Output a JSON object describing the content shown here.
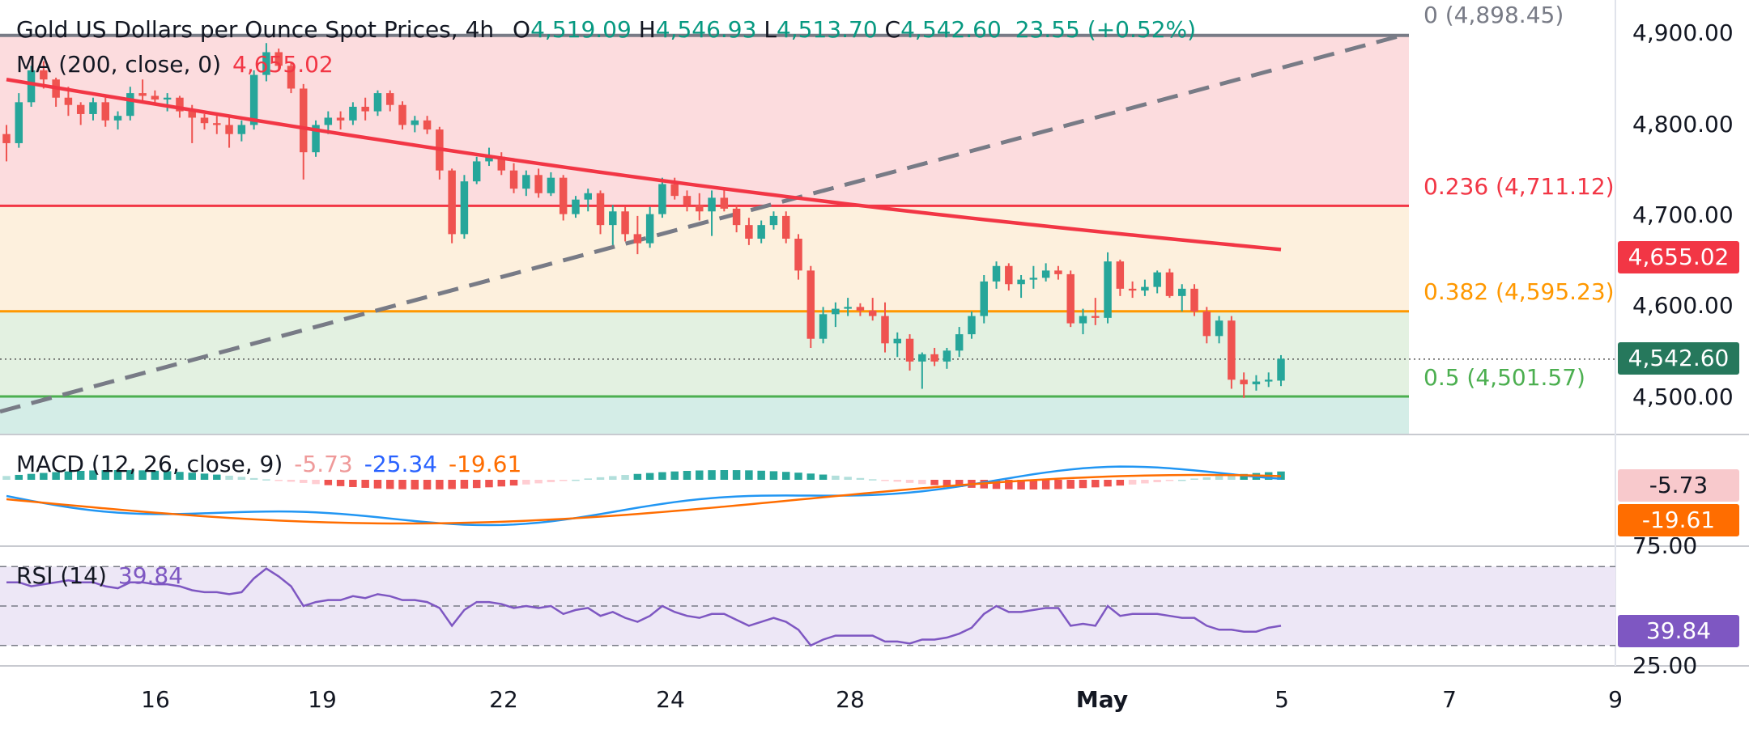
{
  "header": {
    "title": "Gold US Dollars per Ounce Spot Prices, 4h",
    "open_label": "O",
    "open": "4,519.09",
    "high_label": "H",
    "high": "4,546.93",
    "low_label": "L",
    "low": "4,513.70",
    "close_label": "C",
    "close": "4,542.60",
    "change": "23.55",
    "change_pct": "(+0.52%)"
  },
  "ma_legend": {
    "label": "MA (200, close, 0)",
    "value": "4,655.02"
  },
  "macd_legend": {
    "label": "MACD (12, 26, close, 9)",
    "hist": "-5.73",
    "macd": "-25.34",
    "signal": "-19.61"
  },
  "rsi_legend": {
    "label": "RSI (14)",
    "value": "39.84"
  },
  "fib_labels": {
    "f0": "0 (4,898.45)",
    "f236": "0.236 (4,711.12)",
    "f382": "0.382 (4,595.23)",
    "f5": "0.5 (4,501.57)"
  },
  "price_axis": {
    "ticks": [
      "4,900.00",
      "4,800.00",
      "4,700.00",
      "4,600.00",
      "4,500.00"
    ]
  },
  "badges": {
    "ma": "4,655.02",
    "last": "4,542.60",
    "macd_hist": "-5.73",
    "macd_signal": "-19.61",
    "rsi": "39.84"
  },
  "rsi_axis": {
    "top": "75.00",
    "bottom": "25.00"
  },
  "date_axis": [
    "16",
    "19",
    "22",
    "24",
    "28",
    "May",
    "5",
    "7",
    "9"
  ],
  "colors": {
    "up": "#26a69a",
    "down": "#ef5350",
    "ma": "#f23645",
    "fib0": "#787b86",
    "fib236": "#f23645",
    "fib382": "#ff9800",
    "fib5": "#4caf50",
    "zone_red": "#fcdcde",
    "zone_orange": "#fdf0dd",
    "zone_green": "#e3f1e1",
    "zone_teal": "#d4ede7",
    "macd_line": "#2196f3",
    "signal_line": "#ff6d00",
    "rsi_line": "#7e57c2",
    "rsi_band": "#ede7f6"
  },
  "chart_data": [
    {
      "type": "candlestick",
      "title": "Gold US Dollars per Ounce Spot Prices, 4h",
      "ylim": [
        4450,
        4930
      ],
      "y_ticks": [
        4900,
        4800,
        4700,
        4600,
        4500
      ],
      "x_ticks": [
        "16",
        "19",
        "22",
        "24",
        "28",
        "May",
        "5",
        "7",
        "9"
      ],
      "last_price": 4542.6,
      "fibonacci": [
        {
          "level": 0,
          "price": 4898.45
        },
        {
          "level": 0.236,
          "price": 4711.12
        },
        {
          "level": 0.382,
          "price": 4595.23
        },
        {
          "level": 0.5,
          "price": 4501.57
        }
      ],
      "moving_average": {
        "name": "MA (200, close, 0)",
        "start": 4850,
        "end": 4655.02
      },
      "trendline": {
        "style": "dashed",
        "start": 4485,
        "end": 4900
      },
      "series": [
        {
          "name": "OHLC",
          "values": [
            [
              4790,
              4800,
              4760,
              4780
            ],
            [
              4780,
              4835,
              4775,
              4825
            ],
            [
              4825,
              4865,
              4820,
              4860
            ],
            [
              4860,
              4870,
              4840,
              4850
            ],
            [
              4850,
              4852,
              4820,
              4830
            ],
            [
              4830,
              4842,
              4810,
              4822
            ],
            [
              4822,
              4825,
              4800,
              4812
            ],
            [
              4812,
              4830,
              4805,
              4825
            ],
            [
              4825,
              4830,
              4798,
              4805
            ],
            [
              4805,
              4815,
              4795,
              4810
            ],
            [
              4810,
              4842,
              4805,
              4835
            ],
            [
              4835,
              4850,
              4825,
              4832
            ],
            [
              4832,
              4838,
              4822,
              4828
            ],
            [
              4828,
              4835,
              4815,
              4830
            ],
            [
              4830,
              4832,
              4808,
              4815
            ],
            [
              4815,
              4822,
              4780,
              4808
            ],
            [
              4808,
              4812,
              4795,
              4802
            ],
            [
              4802,
              4810,
              4790,
              4800
            ],
            [
              4800,
              4808,
              4775,
              4790
            ],
            [
              4790,
              4805,
              4782,
              4800
            ],
            [
              4800,
              4860,
              4795,
              4855
            ],
            [
              4855,
              4890,
              4848,
              4880
            ],
            [
              4880,
              4884,
              4860,
              4865
            ],
            [
              4865,
              4868,
              4835,
              4840
            ],
            [
              4840,
              4845,
              4740,
              4770
            ],
            [
              4770,
              4805,
              4765,
              4800
            ],
            [
              4800,
              4815,
              4790,
              4808
            ],
            [
              4808,
              4815,
              4795,
              4805
            ],
            [
              4805,
              4825,
              4800,
              4820
            ],
            [
              4820,
              4830,
              4805,
              4815
            ],
            [
              4815,
              4838,
              4810,
              4835
            ],
            [
              4835,
              4838,
              4815,
              4822
            ],
            [
              4822,
              4826,
              4795,
              4800
            ],
            [
              4800,
              4810,
              4792,
              4805
            ],
            [
              4805,
              4810,
              4790,
              4795
            ],
            [
              4795,
              4798,
              4740,
              4750
            ],
            [
              4750,
              4752,
              4670,
              4680
            ],
            [
              4680,
              4745,
              4675,
              4738
            ],
            [
              4738,
              4765,
              4735,
              4760
            ],
            [
              4760,
              4775,
              4755,
              4765
            ],
            [
              4765,
              4770,
              4745,
              4750
            ],
            [
              4750,
              4758,
              4725,
              4730
            ],
            [
              4730,
              4750,
              4722,
              4745
            ],
            [
              4745,
              4752,
              4720,
              4725
            ],
            [
              4725,
              4748,
              4722,
              4742
            ],
            [
              4742,
              4745,
              4695,
              4702
            ],
            [
              4702,
              4722,
              4698,
              4718
            ],
            [
              4718,
              4730,
              4705,
              4725
            ],
            [
              4725,
              4728,
              4680,
              4690
            ],
            [
              4690,
              4712,
              4668,
              4705
            ],
            [
              4705,
              4710,
              4672,
              4680
            ],
            [
              4680,
              4700,
              4658,
              4670
            ],
            [
              4670,
              4710,
              4665,
              4702
            ],
            [
              4702,
              4742,
              4698,
              4735
            ],
            [
              4735,
              4742,
              4718,
              4722
            ],
            [
              4722,
              4728,
              4705,
              4712
            ],
            [
              4712,
              4725,
              4695,
              4705
            ],
            [
              4705,
              4728,
              4678,
              4720
            ],
            [
              4720,
              4730,
              4705,
              4708
            ],
            [
              4708,
              4712,
              4682,
              4690
            ],
            [
              4690,
              4698,
              4668,
              4675
            ],
            [
              4675,
              4695,
              4670,
              4690
            ],
            [
              4690,
              4705,
              4685,
              4700
            ],
            [
              4700,
              4705,
              4670,
              4675
            ],
            [
              4675,
              4680,
              4630,
              4640
            ],
            [
              4640,
              4645,
              4555,
              4565
            ],
            [
              4565,
              4600,
              4560,
              4592
            ],
            [
              4592,
              4605,
              4578,
              4598
            ],
            [
              4598,
              4610,
              4590,
              4600
            ],
            [
              4600,
              4604,
              4590,
              4596
            ],
            [
              4596,
              4610,
              4585,
              4590
            ],
            [
              4590,
              4605,
              4550,
              4560
            ],
            [
              4560,
              4572,
              4545,
              4565
            ],
            [
              4565,
              4570,
              4530,
              4540
            ],
            [
              4540,
              4550,
              4510,
              4548
            ],
            [
              4548,
              4555,
              4535,
              4540
            ],
            [
              4540,
              4555,
              4532,
              4552
            ],
            [
              4552,
              4578,
              4545,
              4570
            ],
            [
              4570,
              4595,
              4565,
              4590
            ],
            [
              4590,
              4635,
              4582,
              4628
            ],
            [
              4628,
              4650,
              4620,
              4645
            ],
            [
              4645,
              4648,
              4618,
              4625
            ],
            [
              4625,
              4635,
              4610,
              4630
            ],
            [
              4630,
              4645,
              4620,
              4632
            ],
            [
              4632,
              4648,
              4628,
              4640
            ],
            [
              4640,
              4645,
              4630,
              4636
            ],
            [
              4636,
              4640,
              4578,
              4582
            ],
            [
              4582,
              4598,
              4570,
              4590
            ],
            [
              4590,
              4610,
              4580,
              4588
            ],
            [
              4588,
              4660,
              4582,
              4650
            ],
            [
              4650,
              4652,
              4612,
              4620
            ],
            [
              4620,
              4628,
              4610,
              4618
            ],
            [
              4618,
              4630,
              4612,
              4622
            ],
            [
              4622,
              4640,
              4615,
              4638
            ],
            [
              4638,
              4642,
              4610,
              4612
            ],
            [
              4612,
              4625,
              4595,
              4620
            ],
            [
              4620,
              4625,
              4590,
              4595
            ],
            [
              4595,
              4600,
              4560,
              4568
            ],
            [
              4568,
              4590,
              4560,
              4585
            ],
            [
              4585,
              4590,
              4510,
              4520
            ],
            [
              4520,
              4528,
              4500,
              4515
            ],
            [
              4515,
              4525,
              4508,
              4518
            ],
            [
              4518,
              4528,
              4512,
              4520
            ],
            [
              4519,
              4547,
              4513,
              4543
            ]
          ]
        }
      ]
    },
    {
      "type": "bar",
      "title": "MACD (12, 26, close, 9)",
      "series": [
        {
          "name": "Histogram",
          "values": [
            -5.73
          ]
        },
        {
          "name": "MACD",
          "values": [
            -25.34
          ]
        },
        {
          "name": "Signal",
          "values": [
            -19.61
          ]
        }
      ]
    },
    {
      "type": "line",
      "title": "RSI (14)",
      "ylim": [
        25,
        75
      ],
      "series": [
        {
          "name": "RSI",
          "values": [
            62,
            62,
            60,
            61,
            62,
            63,
            62,
            62,
            60,
            59,
            62,
            62,
            61,
            61,
            60,
            58,
            57,
            57,
            56,
            57,
            64,
            69,
            65,
            60,
            50,
            52,
            53,
            53,
            55,
            54,
            56,
            55,
            53,
            53,
            52,
            49,
            40,
            48,
            52,
            52,
            51,
            49,
            50,
            49,
            50,
            46,
            48,
            49,
            45,
            47,
            44,
            42,
            45,
            50,
            47,
            45,
            44,
            46,
            46,
            43,
            40,
            42,
            44,
            42,
            38,
            30,
            33,
            35,
            35,
            35,
            35,
            32,
            32,
            31,
            33,
            33,
            34,
            36,
            39,
            46,
            50,
            47,
            47,
            48,
            49,
            49,
            40,
            41,
            40,
            50,
            45,
            46,
            46,
            46,
            45,
            44,
            44,
            40,
            38,
            38,
            37,
            37,
            39,
            40
          ]
        }
      ]
    }
  ]
}
